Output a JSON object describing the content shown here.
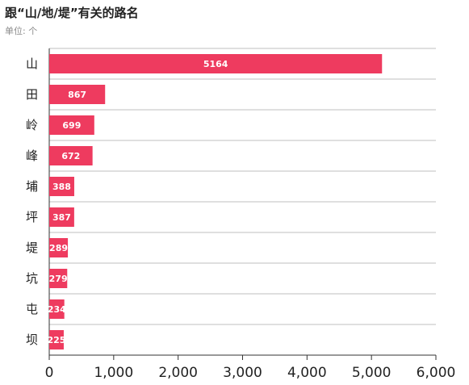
{
  "chart_data": {
    "type": "bar",
    "orientation": "horizontal",
    "title": "跟“山/地/堤”有关的路名",
    "subtitle": "单位: 个",
    "categories": [
      "山",
      "田",
      "岭",
      "峰",
      "埔",
      "坪",
      "堤",
      "坑",
      "屯",
      "坝"
    ],
    "values": [
      5164,
      867,
      699,
      672,
      388,
      387,
      289,
      279,
      234,
      225
    ],
    "xlim": [
      0,
      6000
    ],
    "xticks": [
      0,
      1000,
      2000,
      3000,
      4000,
      5000,
      6000
    ],
    "xtick_labels": [
      "0",
      "1,000",
      "2,000",
      "3,000",
      "4,000",
      "5,000",
      "6,000"
    ],
    "grid": true,
    "bar_color": "#ee3b5f",
    "grid_color": "#bfbfbf",
    "axis_color": "#333333"
  }
}
